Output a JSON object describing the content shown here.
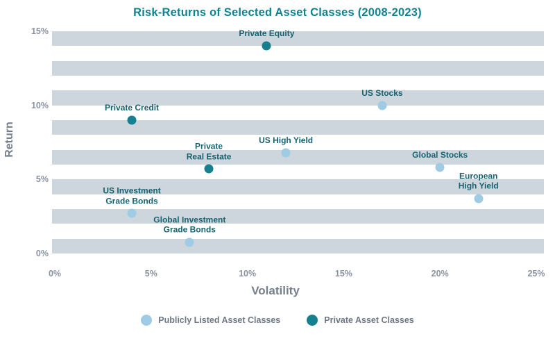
{
  "title": "Risk-Returns of Selected Asset Classes (2008-2023)",
  "colors": {
    "title": "#11828F",
    "band": "#CDD5DD",
    "axis_tick_text": "#8B93A1",
    "axis_title_text": "#76808D",
    "point_label_text": "#16626F",
    "public_dot": "#9FCBE5",
    "private_dot": "#17808F",
    "legend_text": "#6E7885",
    "background": "#FFFFFF"
  },
  "chart_data": {
    "type": "scatter",
    "title": "Risk-Returns of Selected Asset Classes (2008-2023)",
    "xlabel": "Volatility",
    "ylabel": "Return",
    "xlim": [
      0,
      25
    ],
    "ylim": [
      0,
      15
    ],
    "x_ticks": [
      "0%",
      "5%",
      "10%",
      "15%",
      "20%",
      "25%"
    ],
    "x_tick_values": [
      0,
      5,
      10,
      15,
      20,
      25
    ],
    "y_ticks": [
      "0%",
      "5%",
      "10%",
      "15%"
    ],
    "y_tick_values": [
      0,
      5,
      10,
      15
    ],
    "grid": "horizontal stripe bands, 1% tall, every 2%, from 15% down to 0%",
    "legend_position": "bottom-center",
    "series": [
      {
        "name": "Publicly Listed Asset Classes",
        "color": "#9FCBE5",
        "points": [
          {
            "label": "US Stocks",
            "label_lines": [
              "US Stocks"
            ],
            "volatility": 17,
            "return": 10
          },
          {
            "label": "US High Yield",
            "label_lines": [
              "US High Yield"
            ],
            "volatility": 12,
            "return": 6.8
          },
          {
            "label": "Global Stocks",
            "label_lines": [
              "Global Stocks"
            ],
            "volatility": 20,
            "return": 5.8
          },
          {
            "label": "European High Yield",
            "label_lines": [
              "European",
              "High Yield"
            ],
            "volatility": 22,
            "return": 3.7
          },
          {
            "label": "US Investment Grade Bonds",
            "label_lines": [
              "US Investment",
              "Grade Bonds"
            ],
            "volatility": 4,
            "return": 2.7
          },
          {
            "label": "Global Investment Grade Bonds",
            "label_lines": [
              "Global Investment",
              "Grade Bonds"
            ],
            "volatility": 7,
            "return": 0.75
          }
        ]
      },
      {
        "name": "Private Asset Classes",
        "color": "#17808F",
        "points": [
          {
            "label": "Private Equity",
            "label_lines": [
              "Private Equity"
            ],
            "volatility": 11,
            "return": 14
          },
          {
            "label": "Private Credit",
            "label_lines": [
              "Private Credit"
            ],
            "volatility": 4,
            "return": 9
          },
          {
            "label": "Private Real Estate",
            "label_lines": [
              "Private",
              "Real Estate"
            ],
            "volatility": 8,
            "return": 5.7
          }
        ]
      }
    ]
  },
  "legend": {
    "items": [
      {
        "label": "Publicly Listed Asset Classes",
        "swatch": "public-dot"
      },
      {
        "label": "Private Asset Classes",
        "swatch": "private-dot"
      }
    ]
  }
}
